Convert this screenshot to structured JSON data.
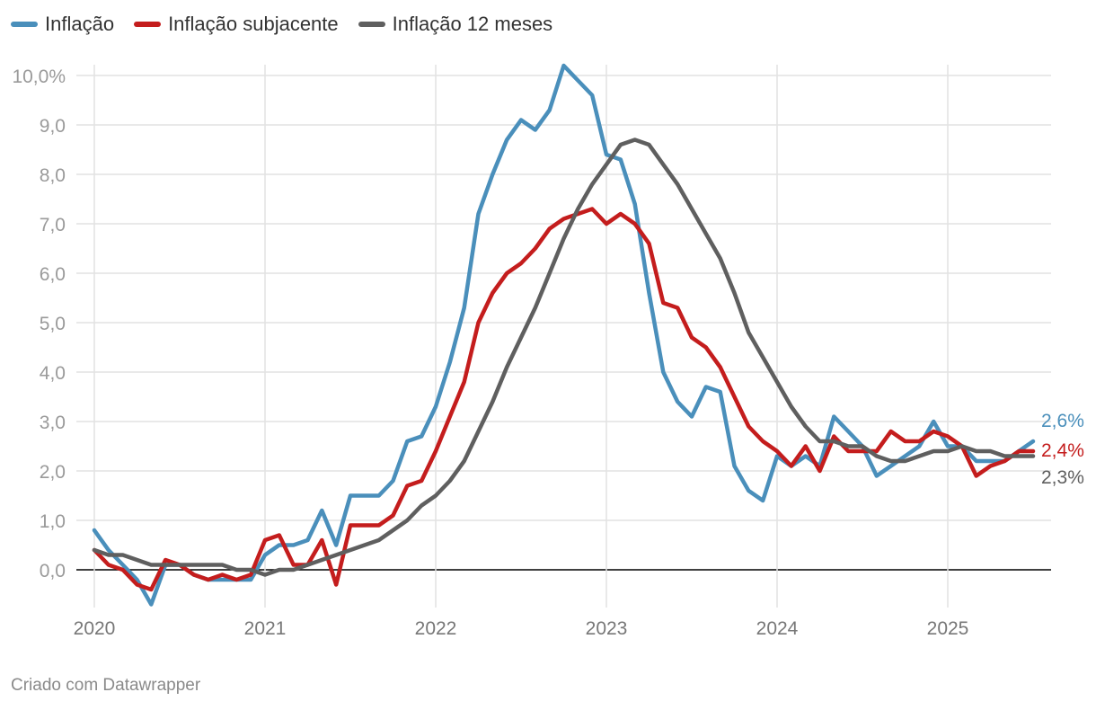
{
  "chart_data": {
    "type": "line",
    "x_start": "2020-01",
    "x_ticks": [
      "2020",
      "2021",
      "2022",
      "2023",
      "2024",
      "2025"
    ],
    "y_ticks": [
      "0,0",
      "1,0",
      "2,0",
      "3,0",
      "4,0",
      "5,0",
      "6,0",
      "7,0",
      "8,0",
      "9,0",
      "10,0%"
    ],
    "ylim": [
      -0.7,
      10.2
    ],
    "grid": true,
    "legend_position": "top-left",
    "series": [
      {
        "name": "Inflação",
        "color": "#4a8fbb",
        "end_label": "2,6%",
        "values": [
          0.8,
          0.4,
          0.1,
          -0.2,
          -0.7,
          0.1,
          0.1,
          -0.1,
          -0.2,
          -0.2,
          -0.2,
          -0.2,
          0.3,
          0.5,
          0.5,
          0.6,
          1.2,
          0.5,
          1.5,
          1.5,
          1.5,
          1.8,
          2.6,
          2.7,
          3.3,
          4.2,
          5.3,
          7.2,
          8.0,
          8.7,
          9.1,
          8.9,
          9.3,
          10.2,
          9.9,
          9.6,
          8.4,
          8.3,
          7.4,
          5.6,
          4.0,
          3.4,
          3.1,
          3.7,
          3.6,
          2.1,
          1.6,
          1.4,
          2.3,
          2.1,
          2.3,
          2.1,
          3.1,
          2.8,
          2.5,
          1.9,
          2.1,
          2.3,
          2.5,
          3.0,
          2.5,
          2.5,
          2.2,
          2.2,
          2.2,
          2.4,
          2.6
        ]
      },
      {
        "name": "Inflação subjacente",
        "color": "#c41d1d",
        "end_label": "2,4%",
        "values": [
          0.4,
          0.1,
          0.0,
          -0.3,
          -0.4,
          0.2,
          0.1,
          -0.1,
          -0.2,
          -0.1,
          -0.2,
          -0.1,
          0.6,
          0.7,
          0.1,
          0.1,
          0.6,
          -0.3,
          0.9,
          0.9,
          0.9,
          1.1,
          1.7,
          1.8,
          2.4,
          3.1,
          3.8,
          5.0,
          5.6,
          6.0,
          6.2,
          6.5,
          6.9,
          7.1,
          7.2,
          7.3,
          7.0,
          7.2,
          7.0,
          6.6,
          5.4,
          5.3,
          4.7,
          4.5,
          4.1,
          3.5,
          2.9,
          2.6,
          2.4,
          2.1,
          2.5,
          2.0,
          2.7,
          2.4,
          2.4,
          2.4,
          2.8,
          2.6,
          2.6,
          2.8,
          2.7,
          2.5,
          1.9,
          2.1,
          2.2,
          2.4,
          2.4
        ]
      },
      {
        "name": "Inflação 12 meses",
        "color": "#5f5f5f",
        "end_label": "2,3%",
        "values": [
          0.4,
          0.3,
          0.3,
          0.2,
          0.1,
          0.1,
          0.1,
          0.1,
          0.1,
          0.1,
          0.0,
          0.0,
          -0.1,
          0.0,
          0.0,
          0.1,
          0.2,
          0.3,
          0.4,
          0.5,
          0.6,
          0.8,
          1.0,
          1.3,
          1.5,
          1.8,
          2.2,
          2.8,
          3.4,
          4.1,
          4.7,
          5.3,
          6.0,
          6.7,
          7.3,
          7.8,
          8.2,
          8.6,
          8.7,
          8.6,
          8.2,
          7.8,
          7.3,
          6.8,
          6.3,
          5.6,
          4.8,
          4.3,
          3.8,
          3.3,
          2.9,
          2.6,
          2.6,
          2.5,
          2.5,
          2.3,
          2.2,
          2.2,
          2.3,
          2.4,
          2.4,
          2.5,
          2.4,
          2.4,
          2.3,
          2.3,
          2.3
        ]
      }
    ]
  },
  "footer": "Criado com Datawrapper"
}
